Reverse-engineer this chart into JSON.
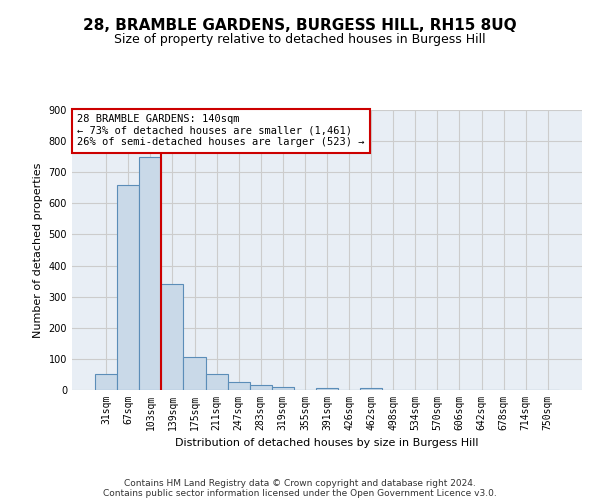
{
  "title": "28, BRAMBLE GARDENS, BURGESS HILL, RH15 8UQ",
  "subtitle": "Size of property relative to detached houses in Burgess Hill",
  "xlabel": "Distribution of detached houses by size in Burgess Hill",
  "ylabel": "Number of detached properties",
  "footer_line1": "Contains HM Land Registry data © Crown copyright and database right 2024.",
  "footer_line2": "Contains public sector information licensed under the Open Government Licence v3.0.",
  "categories": [
    "31sqm",
    "67sqm",
    "103sqm",
    "139sqm",
    "175sqm",
    "211sqm",
    "247sqm",
    "283sqm",
    "319sqm",
    "355sqm",
    "391sqm",
    "426sqm",
    "462sqm",
    "498sqm",
    "534sqm",
    "570sqm",
    "606sqm",
    "642sqm",
    "678sqm",
    "714sqm",
    "750sqm"
  ],
  "values": [
    50,
    660,
    750,
    340,
    107,
    50,
    25,
    15,
    10,
    0,
    8,
    0,
    8,
    0,
    0,
    0,
    0,
    0,
    0,
    0,
    0
  ],
  "bar_color": "#c9d9e8",
  "bar_edge_color": "#5b8db8",
  "grid_color": "#cccccc",
  "background_color": "#e8eef5",
  "annotation_text": "28 BRAMBLE GARDENS: 140sqm\n← 73% of detached houses are smaller (1,461)\n26% of semi-detached houses are larger (523) →",
  "annotation_box_color": "#ffffff",
  "annotation_box_edge": "#cc0000",
  "red_line_color": "#cc0000",
  "ylim": [
    0,
    900
  ],
  "yticks": [
    0,
    100,
    200,
    300,
    400,
    500,
    600,
    700,
    800,
    900
  ],
  "title_fontsize": 11,
  "subtitle_fontsize": 9,
  "ylabel_fontsize": 8,
  "xlabel_fontsize": 8,
  "tick_fontsize": 7,
  "footer_fontsize": 6.5
}
